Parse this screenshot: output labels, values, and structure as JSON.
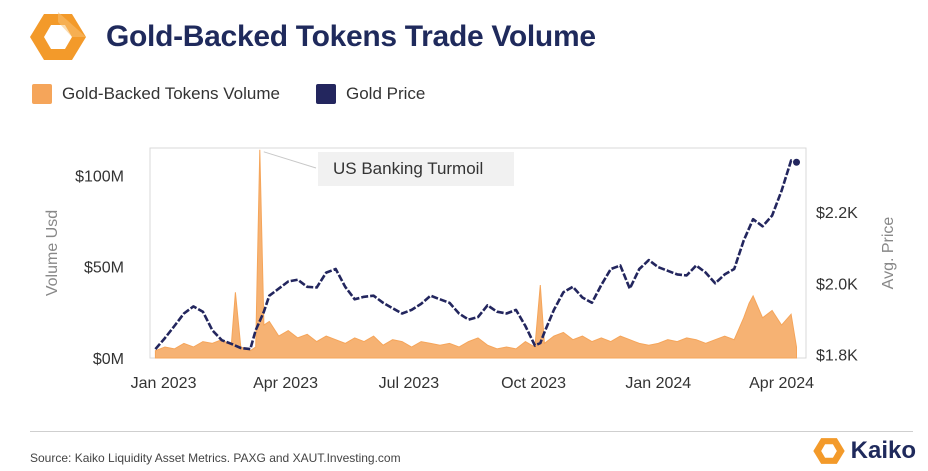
{
  "header": {
    "title": "Gold-Backed Tokens Trade Volume"
  },
  "legend": {
    "items": [
      {
        "label": "Gold-Backed Tokens Volume",
        "color": "#f5a55a"
      },
      {
        "label": "Gold Price",
        "color": "#23265e"
      }
    ]
  },
  "footer": {
    "source": "Source: Kaiko Liquidity Asset Metrics. PAXG and XAUT.Investing.com",
    "brand": "Kaiko"
  },
  "colors": {
    "accent_orange": "#f5a55a",
    "navy": "#23265e",
    "brand_orange": "#f39a2a"
  },
  "chart_data": {
    "type": "area+line",
    "title": "Gold-Backed Tokens Trade Volume",
    "xlabel": "",
    "ylabel": "Volume Usd",
    "y2label": "Avg. Price",
    "x_ticks": [
      "Jan 2023",
      "Apr 2023",
      "Jul 2023",
      "Oct 2023",
      "Jan 2024",
      "Apr 2024"
    ],
    "y_ticks": [
      "$0M",
      "$50M",
      "$100M"
    ],
    "y2_ticks": [
      "$1.8K",
      "$2.0K",
      "$2.2K"
    ],
    "ylim": [
      0,
      115
    ],
    "y2lim": [
      1790,
      2380
    ],
    "annotation": {
      "text": "US Banking Turmoil",
      "date": "2023-03-13",
      "value": 114
    },
    "grid": false,
    "series": [
      {
        "name": "Gold-Backed Tokens Volume",
        "kind": "area",
        "points": [
          [
            "2022-12-26",
            4
          ],
          [
            "2023-01-02",
            6
          ],
          [
            "2023-01-09",
            5
          ],
          [
            "2023-01-16",
            8
          ],
          [
            "2023-01-23",
            6
          ],
          [
            "2023-01-30",
            9
          ],
          [
            "2023-02-06",
            8
          ],
          [
            "2023-02-13",
            10
          ],
          [
            "2023-02-20",
            7
          ],
          [
            "2023-02-23",
            36
          ],
          [
            "2023-02-27",
            6
          ],
          [
            "2023-03-06",
            4
          ],
          [
            "2023-03-10",
            6
          ],
          [
            "2023-03-13",
            114
          ],
          [
            "2023-03-16",
            18
          ],
          [
            "2023-03-20",
            20
          ],
          [
            "2023-03-27",
            12
          ],
          [
            "2023-04-03",
            15
          ],
          [
            "2023-04-10",
            11
          ],
          [
            "2023-04-17",
            13
          ],
          [
            "2023-04-24",
            9
          ],
          [
            "2023-05-01",
            12
          ],
          [
            "2023-05-08",
            10
          ],
          [
            "2023-05-15",
            8
          ],
          [
            "2023-05-22",
            11
          ],
          [
            "2023-05-29",
            9
          ],
          [
            "2023-06-05",
            12
          ],
          [
            "2023-06-12",
            7
          ],
          [
            "2023-06-19",
            10
          ],
          [
            "2023-06-26",
            9
          ],
          [
            "2023-07-03",
            6
          ],
          [
            "2023-07-10",
            9
          ],
          [
            "2023-07-17",
            8
          ],
          [
            "2023-07-24",
            7
          ],
          [
            "2023-07-31",
            8
          ],
          [
            "2023-08-07",
            6
          ],
          [
            "2023-08-14",
            9
          ],
          [
            "2023-08-21",
            11
          ],
          [
            "2023-08-28",
            7
          ],
          [
            "2023-09-04",
            5
          ],
          [
            "2023-09-11",
            6
          ],
          [
            "2023-09-18",
            5
          ],
          [
            "2023-09-25",
            9
          ],
          [
            "2023-10-02",
            6
          ],
          [
            "2023-10-06",
            40
          ],
          [
            "2023-10-09",
            8
          ],
          [
            "2023-10-16",
            12
          ],
          [
            "2023-10-23",
            14
          ],
          [
            "2023-10-30",
            10
          ],
          [
            "2023-11-06",
            12
          ],
          [
            "2023-11-13",
            9
          ],
          [
            "2023-11-20",
            11
          ],
          [
            "2023-11-27",
            9
          ],
          [
            "2023-12-04",
            12
          ],
          [
            "2023-12-11",
            10
          ],
          [
            "2023-12-18",
            8
          ],
          [
            "2023-12-25",
            7
          ],
          [
            "2024-01-01",
            8
          ],
          [
            "2024-01-08",
            10
          ],
          [
            "2024-01-15",
            9
          ],
          [
            "2024-01-22",
            11
          ],
          [
            "2024-01-29",
            10
          ],
          [
            "2024-02-05",
            8
          ],
          [
            "2024-02-12",
            10
          ],
          [
            "2024-02-19",
            12
          ],
          [
            "2024-02-26",
            10
          ],
          [
            "2024-03-04",
            22
          ],
          [
            "2024-03-08",
            30
          ],
          [
            "2024-03-11",
            34
          ],
          [
            "2024-03-18",
            22
          ],
          [
            "2024-03-25",
            26
          ],
          [
            "2024-04-01",
            18
          ],
          [
            "2024-04-08",
            24
          ],
          [
            "2024-04-12",
            6
          ]
        ]
      },
      {
        "name": "Gold Price",
        "kind": "line",
        "points": [
          [
            "2022-12-26",
            1815
          ],
          [
            "2023-01-02",
            1846
          ],
          [
            "2023-01-09",
            1880
          ],
          [
            "2023-01-16",
            1915
          ],
          [
            "2023-01-23",
            1935
          ],
          [
            "2023-01-30",
            1920
          ],
          [
            "2023-02-06",
            1868
          ],
          [
            "2023-02-13",
            1840
          ],
          [
            "2023-02-20",
            1830
          ],
          [
            "2023-02-27",
            1818
          ],
          [
            "2023-03-06",
            1815
          ],
          [
            "2023-03-10",
            1868
          ],
          [
            "2023-03-16",
            1920
          ],
          [
            "2023-03-20",
            1965
          ],
          [
            "2023-03-27",
            1985
          ],
          [
            "2023-04-03",
            2005
          ],
          [
            "2023-04-10",
            2010
          ],
          [
            "2023-04-17",
            1990
          ],
          [
            "2023-04-24",
            1988
          ],
          [
            "2023-05-01",
            2030
          ],
          [
            "2023-05-08",
            2040
          ],
          [
            "2023-05-15",
            1990
          ],
          [
            "2023-05-22",
            1955
          ],
          [
            "2023-05-29",
            1962
          ],
          [
            "2023-06-05",
            1965
          ],
          [
            "2023-06-12",
            1945
          ],
          [
            "2023-06-19",
            1930
          ],
          [
            "2023-06-26",
            1915
          ],
          [
            "2023-07-03",
            1925
          ],
          [
            "2023-07-10",
            1942
          ],
          [
            "2023-07-17",
            1965
          ],
          [
            "2023-07-24",
            1955
          ],
          [
            "2023-07-31",
            1945
          ],
          [
            "2023-08-07",
            1915
          ],
          [
            "2023-08-14",
            1898
          ],
          [
            "2023-08-21",
            1905
          ],
          [
            "2023-08-28",
            1938
          ],
          [
            "2023-09-04",
            1920
          ],
          [
            "2023-09-11",
            1915
          ],
          [
            "2023-09-18",
            1925
          ],
          [
            "2023-09-25",
            1880
          ],
          [
            "2023-10-02",
            1825
          ],
          [
            "2023-10-06",
            1832
          ],
          [
            "2023-10-09",
            1862
          ],
          [
            "2023-10-16",
            1925
          ],
          [
            "2023-10-23",
            1975
          ],
          [
            "2023-10-30",
            1990
          ],
          [
            "2023-11-06",
            1960
          ],
          [
            "2023-11-13",
            1945
          ],
          [
            "2023-11-20",
            1995
          ],
          [
            "2023-11-27",
            2040
          ],
          [
            "2023-12-04",
            2050
          ],
          [
            "2023-12-11",
            1985
          ],
          [
            "2023-12-18",
            2040
          ],
          [
            "2023-12-25",
            2065
          ],
          [
            "2024-01-01",
            2045
          ],
          [
            "2024-01-08",
            2035
          ],
          [
            "2024-01-15",
            2025
          ],
          [
            "2024-01-22",
            2022
          ],
          [
            "2024-01-29",
            2050
          ],
          [
            "2024-02-05",
            2030
          ],
          [
            "2024-02-12",
            2000
          ],
          [
            "2024-02-19",
            2025
          ],
          [
            "2024-02-26",
            2040
          ],
          [
            "2024-03-04",
            2120
          ],
          [
            "2024-03-11",
            2180
          ],
          [
            "2024-03-18",
            2160
          ],
          [
            "2024-03-25",
            2190
          ],
          [
            "2024-04-01",
            2260
          ],
          [
            "2024-04-08",
            2345
          ],
          [
            "2024-04-12",
            2340
          ]
        ]
      }
    ]
  }
}
